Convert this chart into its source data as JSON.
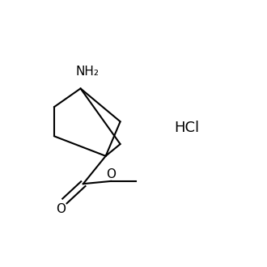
{
  "background_color": "#ffffff",
  "hcl_text": "HCl",
  "hcl_fontsize": 13,
  "nh2_text": "NH₂",
  "nh2_fontsize": 11,
  "o_carbonyl_text": "O",
  "o_ether_text": "O",
  "label_fontsize": 11,
  "line_color": "#000000",
  "line_width": 1.5
}
